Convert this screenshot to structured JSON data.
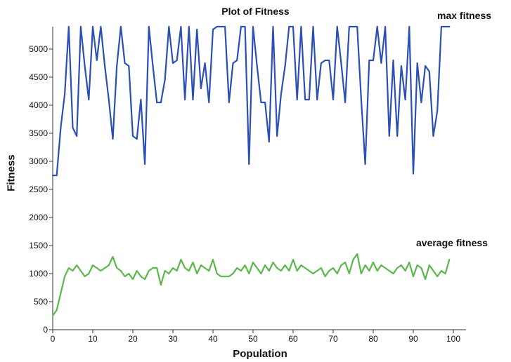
{
  "chart_data": {
    "type": "line",
    "title": "Plot of Fitness",
    "xlabel": "Population",
    "ylabel": "Fitness",
    "xlim": [
      0,
      100
    ],
    "ylim": [
      0,
      5400
    ],
    "xticks": [
      0,
      10,
      20,
      30,
      40,
      50,
      60,
      70,
      80,
      90,
      100
    ],
    "yticks": [
      0,
      500,
      1000,
      1500,
      2000,
      2500,
      3000,
      3500,
      4000,
      4500,
      5000
    ],
    "grid": false,
    "series": [
      {
        "name": "max fitness",
        "color": "#2b4fb5",
        "x": [
          0,
          1,
          2,
          3,
          4,
          5,
          6,
          7,
          8,
          9,
          10,
          11,
          12,
          13,
          14,
          15,
          16,
          17,
          18,
          19,
          20,
          21,
          22,
          23,
          24,
          25,
          26,
          27,
          28,
          29,
          30,
          31,
          32,
          33,
          34,
          35,
          36,
          37,
          38,
          39,
          40,
          41,
          42,
          43,
          44,
          45,
          46,
          47,
          48,
          49,
          50,
          51,
          52,
          53,
          54,
          55,
          56,
          57,
          58,
          59,
          60,
          61,
          62,
          63,
          64,
          65,
          66,
          67,
          68,
          69,
          70,
          71,
          72,
          73,
          74,
          75,
          76,
          77,
          78,
          79,
          80,
          81,
          82,
          83,
          84,
          85,
          86,
          87,
          88,
          89,
          90,
          91,
          92,
          93,
          94,
          95,
          96,
          97,
          98,
          99
        ],
        "values": [
          2750,
          2750,
          3600,
          4200,
          5400,
          3600,
          3450,
          5400,
          4700,
          4100,
          5400,
          4800,
          5400,
          4700,
          4100,
          3400,
          4700,
          5400,
          4750,
          4700,
          3450,
          3400,
          4100,
          2950,
          5400,
          4700,
          4050,
          4050,
          4450,
          5400,
          4750,
          4800,
          5400,
          4100,
          5400,
          4100,
          5350,
          4300,
          4750,
          4050,
          5350,
          5400,
          5400,
          5400,
          4050,
          4750,
          4800,
          5400,
          5400,
          2950,
          5400,
          4700,
          4050,
          4050,
          3350,
          5400,
          3450,
          4200,
          4700,
          5400,
          5400,
          4100,
          5400,
          4100,
          4100,
          5400,
          4100,
          4750,
          4800,
          4800,
          4100,
          5400,
          4750,
          4050,
          5400,
          5400,
          5400,
          4100,
          2950,
          4800,
          4800,
          5400,
          4750,
          5400,
          3450,
          4800,
          3450,
          4700,
          4100,
          5400,
          2780,
          4750,
          4050,
          4700,
          4600,
          3450,
          3900,
          5400,
          5400,
          5400
        ]
      },
      {
        "name": "average fitness",
        "color": "#5ab84a",
        "x": [
          0,
          1,
          2,
          3,
          4,
          5,
          6,
          7,
          8,
          9,
          10,
          11,
          12,
          13,
          14,
          15,
          16,
          17,
          18,
          19,
          20,
          21,
          22,
          23,
          24,
          25,
          26,
          27,
          28,
          29,
          30,
          31,
          32,
          33,
          34,
          35,
          36,
          37,
          38,
          39,
          40,
          41,
          42,
          43,
          44,
          45,
          46,
          47,
          48,
          49,
          50,
          51,
          52,
          53,
          54,
          55,
          56,
          57,
          58,
          59,
          60,
          61,
          62,
          63,
          64,
          65,
          66,
          67,
          68,
          69,
          70,
          71,
          72,
          73,
          74,
          75,
          76,
          77,
          78,
          79,
          80,
          81,
          82,
          83,
          84,
          85,
          86,
          87,
          88,
          89,
          90,
          91,
          92,
          93,
          94,
          95,
          96,
          97,
          98,
          99
        ],
        "values": [
          250,
          350,
          650,
          950,
          1100,
          1050,
          1150,
          1050,
          950,
          1000,
          1150,
          1100,
          1050,
          1100,
          1150,
          1300,
          1100,
          1050,
          950,
          1000,
          900,
          1050,
          950,
          900,
          1050,
          1100,
          1100,
          800,
          1050,
          1000,
          1100,
          1050,
          1250,
          1100,
          1050,
          1200,
          1000,
          1150,
          1100,
          1050,
          1250,
          1000,
          950,
          950,
          950,
          1000,
          1100,
          1050,
          1150,
          1000,
          1200,
          1100,
          1000,
          1150,
          1050,
          1200,
          1100,
          1050,
          1150,
          1050,
          1250,
          1050,
          1150,
          1100,
          1050,
          1000,
          1050,
          1100,
          950,
          1050,
          1100,
          1000,
          1150,
          1200,
          1000,
          1250,
          1350,
          1000,
          1150,
          1050,
          1200,
          1050,
          1150,
          1100,
          1050,
          1000,
          1100,
          1150,
          1050,
          1200,
          950,
          1150,
          1100,
          900,
          1150,
          1050,
          950,
          1050,
          1000,
          1250
        ]
      }
    ],
    "series_labels_position": "right"
  }
}
